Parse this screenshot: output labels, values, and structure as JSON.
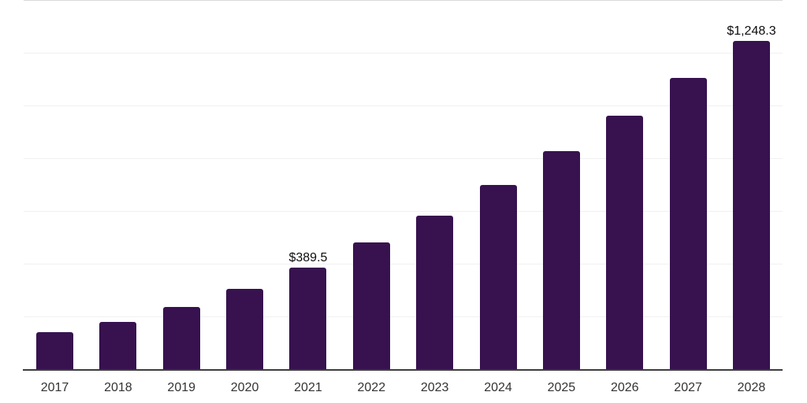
{
  "chart_data": {
    "type": "bar",
    "title": "",
    "xlabel": "",
    "ylabel": "",
    "categories": [
      "2017",
      "2018",
      "2019",
      "2020",
      "2021",
      "2022",
      "2023",
      "2024",
      "2025",
      "2026",
      "2027",
      "2028"
    ],
    "values": [
      144,
      182,
      239,
      308,
      389.5,
      483,
      585,
      702,
      829,
      963,
      1107,
      1248.3
    ],
    "data_labels": [
      "",
      "",
      "",
      "",
      "$389.5",
      "",
      "",
      "",
      "",
      "",
      "",
      "$1,248.3"
    ],
    "ylim": [
      0,
      1400
    ],
    "gridline_step": 200,
    "grid": "horizontal",
    "legend": "none",
    "y_axis_tick_labels": "none",
    "bar_color": "#37124F"
  },
  "colors": {
    "bar": "#37124F",
    "axis_line": "#3c3c3c",
    "gridline": "#f1f1f1",
    "top_border": "#d9d9d9",
    "tick_label": "#333333",
    "data_label": "#0d0d0d",
    "background": "#ffffff"
  }
}
